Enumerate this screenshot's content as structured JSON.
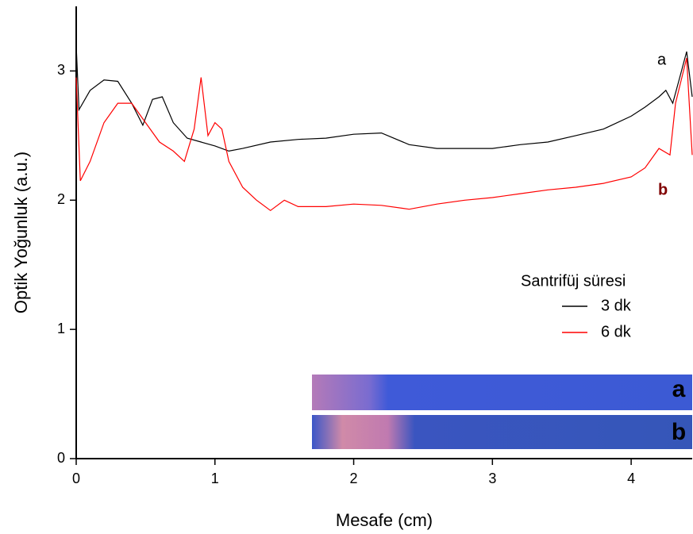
{
  "chart_data": {
    "type": "line",
    "xlabel": "Mesafe (cm)",
    "ylabel": "Optik Yoğunluk (a.u.)",
    "xlim": [
      0,
      4.44
    ],
    "ylim": [
      0,
      3.5
    ],
    "xticks": [
      0,
      1,
      2,
      3,
      4
    ],
    "yticks": [
      0,
      1,
      2,
      3
    ],
    "legend_title": "Santrifüj süresi",
    "series": [
      {
        "name": "3 dk",
        "color": "#000000",
        "x": [
          0,
          0.02,
          0.1,
          0.2,
          0.3,
          0.4,
          0.48,
          0.55,
          0.62,
          0.7,
          0.8,
          0.9,
          1.0,
          1.1,
          1.2,
          1.4,
          1.6,
          1.8,
          2.0,
          2.2,
          2.4,
          2.6,
          2.8,
          3.0,
          3.2,
          3.4,
          3.6,
          3.8,
          4.0,
          4.1,
          4.2,
          4.25,
          4.3,
          4.35,
          4.4,
          4.44
        ],
        "values": [
          3.2,
          2.7,
          2.85,
          2.93,
          2.92,
          2.75,
          2.58,
          2.78,
          2.8,
          2.6,
          2.48,
          2.45,
          2.42,
          2.38,
          2.4,
          2.45,
          2.47,
          2.48,
          2.51,
          2.52,
          2.43,
          2.4,
          2.4,
          2.4,
          2.43,
          2.45,
          2.5,
          2.55,
          2.65,
          2.72,
          2.8,
          2.85,
          2.75,
          2.95,
          3.15,
          2.8
        ]
      },
      {
        "name": "6 dk",
        "color": "#ff0000",
        "x": [
          0,
          0.03,
          0.1,
          0.2,
          0.3,
          0.4,
          0.5,
          0.6,
          0.7,
          0.78,
          0.85,
          0.9,
          0.95,
          1.0,
          1.05,
          1.1,
          1.2,
          1.3,
          1.4,
          1.5,
          1.6,
          1.8,
          2.0,
          2.2,
          2.4,
          2.6,
          2.8,
          3.0,
          3.2,
          3.4,
          3.6,
          3.8,
          4.0,
          4.1,
          4.2,
          4.28,
          4.32,
          4.4,
          4.44
        ],
        "values": [
          2.95,
          2.15,
          2.3,
          2.6,
          2.75,
          2.75,
          2.6,
          2.45,
          2.38,
          2.3,
          2.55,
          2.95,
          2.5,
          2.6,
          2.55,
          2.3,
          2.1,
          2.0,
          1.92,
          2.0,
          1.95,
          1.95,
          1.97,
          1.96,
          1.93,
          1.97,
          2.0,
          2.02,
          2.05,
          2.08,
          2.1,
          2.13,
          2.18,
          2.25,
          2.4,
          2.35,
          2.75,
          3.1,
          2.35
        ]
      }
    ],
    "annotations": [
      "a",
      "b"
    ],
    "inset_labels": [
      "a",
      "b"
    ]
  }
}
